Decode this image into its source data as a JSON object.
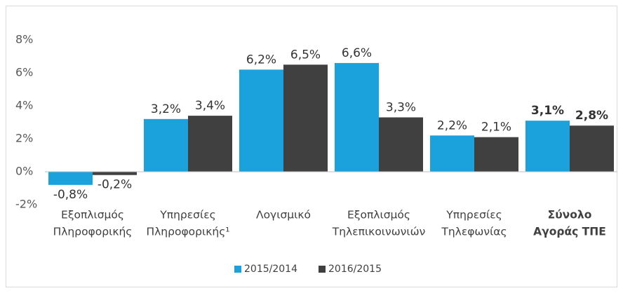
{
  "chart_data": {
    "type": "bar",
    "categories": [
      [
        "Εξοπλισμός",
        "Πληροφορικής"
      ],
      [
        "Υπηρεσίες",
        "Πληροφορικής¹"
      ],
      [
        "Λογισμικό"
      ],
      [
        "Εξοπλισμός",
        "Τηλεπικοινωνιών"
      ],
      [
        "Υπηρεσίες",
        "Τηλεφωνίας"
      ],
      [
        "Σύνολο",
        "Αγοράς ΤΠΕ"
      ]
    ],
    "series": [
      {
        "name": "2015/2014",
        "color": "#1ba1dc",
        "values": [
          -0.8,
          3.2,
          6.2,
          6.6,
          2.2,
          3.1
        ],
        "value_labels": [
          "-0,8%",
          "3,2%",
          "6,2%",
          "6,6%",
          "2,2%",
          "3,1%"
        ]
      },
      {
        "name": "2016/2015",
        "color": "#404040",
        "values": [
          -0.2,
          3.4,
          6.5,
          3.3,
          2.1,
          2.8
        ],
        "value_labels": [
          "-0,2%",
          "3,4%",
          "6,5%",
          "3,3%",
          "2,1%",
          "2,8%"
        ]
      }
    ],
    "ylim": [
      -2,
      8
    ],
    "yticks": [
      {
        "value": -2,
        "label": "-2%"
      },
      {
        "value": 0,
        "label": "0%"
      },
      {
        "value": 2,
        "label": "2%"
      },
      {
        "value": 4,
        "label": "4%"
      },
      {
        "value": 6,
        "label": "6%"
      },
      {
        "value": 8,
        "label": "8%"
      }
    ],
    "grid": false,
    "legend": "bottom",
    "bold_last_category": true
  }
}
